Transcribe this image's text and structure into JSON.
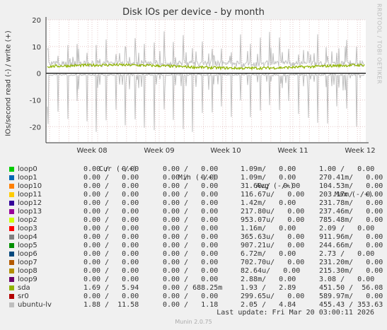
{
  "title": "Disk IOs per device - by month",
  "ylabel": "IOs/second read (-) / write (+)",
  "watermark": "RRDTOOL / TOBI OETIKER",
  "footer": "Munin 2.0.75",
  "last_update": "Last update: Fri Mar 20 03:00:11 2026",
  "legend_headers": {
    "cur": "Cur (-/+)",
    "min": "Min (-/+)",
    "avg": "Avg (-/+)",
    "max": "Max (-/+)"
  },
  "legend": [
    {
      "name": "loop0",
      "color": "#00cc00",
      "cur": "0.00 /   0.00",
      "min": "0.00 /   0.00",
      "avg": "1.09m/   0.00",
      "max": "1.00 /   0.00"
    },
    {
      "name": "loop1",
      "color": "#0066b3",
      "cur": "0.00 /   0.00",
      "min": "0.00 /   0.00",
      "avg": "1.09m/   0.00",
      "max": "270.41m/   0.00"
    },
    {
      "name": "loop10",
      "color": "#ff8000",
      "cur": "0.00 /   0.00",
      "min": "0.00 /   0.00",
      "avg": "31.60u/   0.00",
      "max": "104.53m/   0.00"
    },
    {
      "name": "loop11",
      "color": "#ffcc00",
      "cur": "0.00 /   0.00",
      "min": "0.00 /   0.00",
      "avg": "116.67u/   0.00",
      "max": "203.17m/   0.00"
    },
    {
      "name": "loop12",
      "color": "#330099",
      "cur": "0.00 /   0.00",
      "min": "0.00 /   0.00",
      "avg": "1.42m/   0.00",
      "max": "231.78m/   0.00"
    },
    {
      "name": "loop13",
      "color": "#990099",
      "cur": "0.00 /   0.00",
      "min": "0.00 /   0.00",
      "avg": "217.80u/   0.00",
      "max": "237.46m/   0.00"
    },
    {
      "name": "loop2",
      "color": "#ccff00",
      "cur": "0.00 /   0.00",
      "min": "0.00 /   0.00",
      "avg": "953.07u/   0.00",
      "max": "785.48m/   0.00"
    },
    {
      "name": "loop3",
      "color": "#ff0000",
      "cur": "0.00 /   0.00",
      "min": "0.00 /   0.00",
      "avg": "1.16m/   0.00",
      "max": "2.09 /   0.00"
    },
    {
      "name": "loop4",
      "color": "#808080",
      "cur": "0.00 /   0.00",
      "min": "0.00 /   0.00",
      "avg": "365.63u/   0.00",
      "max": "911.96m/   0.00"
    },
    {
      "name": "loop5",
      "color": "#008f00",
      "cur": "0.00 /   0.00",
      "min": "0.00 /   0.00",
      "avg": "907.21u/   0.00",
      "max": "244.66m/   0.00"
    },
    {
      "name": "loop6",
      "color": "#00487d",
      "cur": "0.00 /   0.00",
      "min": "0.00 /   0.00",
      "avg": "6.72m/   0.00",
      "max": "2.73 /   0.00"
    },
    {
      "name": "loop7",
      "color": "#b35a00",
      "cur": "0.00 /   0.00",
      "min": "0.00 /   0.00",
      "avg": "702.70u/   0.00",
      "max": "231.20m/   0.00"
    },
    {
      "name": "loop8",
      "color": "#b38f00",
      "cur": "0.00 /   0.00",
      "min": "0.00 /   0.00",
      "avg": "82.64u/   0.00",
      "max": "215.30m/   0.00"
    },
    {
      "name": "loop9",
      "color": "#6b006b",
      "cur": "0.00 /   0.00",
      "min": "0.00 /   0.00",
      "avg": "2.88m/   0.00",
      "max": "3.08 /   0.00"
    },
    {
      "name": "sda",
      "color": "#8fb300",
      "cur": "1.69 /   5.94",
      "min": "0.00 / 688.25m",
      "avg": "1.93 /   2.89",
      "max": "451.50 /  56.08"
    },
    {
      "name": "sr0",
      "color": "#b30000",
      "cur": "0.00 /   0.00",
      "min": "0.00 /   0.00",
      "avg": "299.65u/   0.00",
      "max": "589.97m/   0.00"
    },
    {
      "name": "ubuntu-lv",
      "color": "#bebebe",
      "cur": "1.88 /  11.58",
      "min": "0.00 /   1.18",
      "avg": "2.05 /   4.84",
      "max": "455.43 / 353.63"
    }
  ],
  "chart_data": {
    "type": "line",
    "title": "Disk IOs per device - by month",
    "ylabel": "IOs/second read (-) / write (+)",
    "xlabel": "",
    "x_ticks": [
      "Week 08",
      "Week 09",
      "Week 10",
      "Week 11",
      "Week 12"
    ],
    "y_ticks": [
      20,
      10,
      0,
      -10,
      -20
    ],
    "ylim": [
      -26,
      20
    ],
    "grid": true,
    "series": [
      {
        "name": "sda",
        "color": "#8fb300",
        "baseline_write": 2.5,
        "read_level": 0
      },
      {
        "name": "ubuntu-lv",
        "color": "#bebebe",
        "baseline_write": 3.5,
        "spike_write_max": 16,
        "spike_read_min": -22
      }
    ]
  }
}
